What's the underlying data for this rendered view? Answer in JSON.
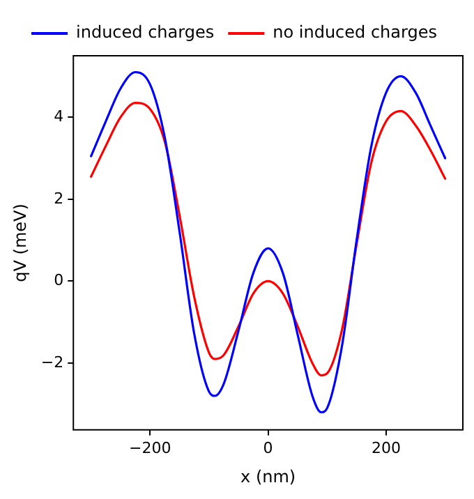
{
  "chart_data": {
    "type": "line",
    "xlabel": "x (nm)",
    "ylabel": "qV (meV)",
    "x": [
      -300,
      -275,
      -250,
      -225,
      -200,
      -175,
      -150,
      -125,
      -100,
      -90,
      -75,
      -50,
      -25,
      0,
      25,
      50,
      75,
      90,
      100,
      125,
      150,
      175,
      200,
      225,
      250,
      275,
      300
    ],
    "series": [
      {
        "name": "induced charges",
        "color": "#0000ff",
        "values": [
          3.05,
          3.9,
          4.7,
          5.1,
          4.8,
          3.5,
          1.2,
          -1.3,
          -2.7,
          -2.8,
          -2.5,
          -1.2,
          0.2,
          0.8,
          0.2,
          -1.3,
          -2.8,
          -3.2,
          -3.1,
          -1.6,
          1.0,
          3.3,
          4.6,
          5.0,
          4.6,
          3.8,
          3.0
        ]
      },
      {
        "name": "no induced charges",
        "color": "#ff0000",
        "values": [
          2.55,
          3.3,
          4.0,
          4.35,
          4.2,
          3.4,
          1.6,
          -0.4,
          -1.75,
          -1.9,
          -1.8,
          -1.1,
          -0.3,
          0.0,
          -0.3,
          -1.1,
          -2.0,
          -2.3,
          -2.25,
          -1.2,
          0.9,
          2.9,
          3.9,
          4.15,
          3.8,
          3.2,
          2.5
        ]
      }
    ],
    "xlim": [
      -330,
      330
    ],
    "xticks": [
      -200,
      0,
      200
    ],
    "ylim": [
      -3.63,
      5.5
    ],
    "yticks": [
      -2,
      0,
      2,
      4
    ],
    "grid": false,
    "legend": "top",
    "marker": "none",
    "line_style": "solid"
  }
}
